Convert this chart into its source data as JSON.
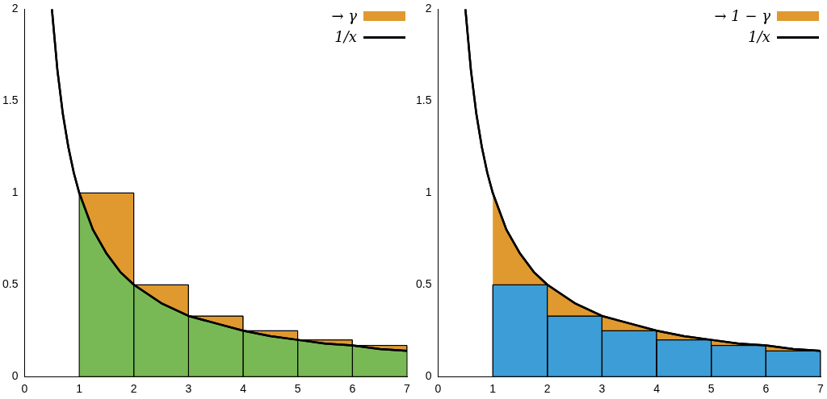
{
  "chart_data": [
    {
      "type": "line",
      "xlim": [
        0,
        7
      ],
      "ylim": [
        0,
        2
      ],
      "xticks": [
        0,
        1,
        2,
        3,
        4,
        5,
        6,
        7
      ],
      "yticks": [
        0,
        0.5,
        1,
        1.5,
        2
      ],
      "grid": false,
      "legend": "top right",
      "series": [
        {
          "type": "histogram",
          "name": "→ γ",
          "color": "#e0992f",
          "bins": [
            1,
            2,
            3,
            4,
            5,
            6,
            7
          ],
          "values": [
            1,
            0.5,
            0.33,
            0.25,
            0.2,
            0.17
          ]
        },
        {
          "type": "area",
          "color": "#79b955",
          "x": [
            1,
            1.25,
            1.5,
            1.75,
            2,
            2.5,
            3,
            3.5,
            4,
            4.5,
            5,
            5.5,
            6,
            6.5,
            7
          ],
          "values": [
            1,
            0.8,
            0.67,
            0.57,
            0.5,
            0.4,
            0.33,
            0.29,
            0.25,
            0.22,
            0.2,
            0.18,
            0.17,
            0.15,
            0.14
          ]
        },
        {
          "name": "1/x",
          "color": "#000000",
          "x": [
            0.5,
            0.6,
            0.7,
            0.8,
            0.9,
            1,
            1.25,
            1.5,
            1.75,
            2,
            2.5,
            3,
            3.5,
            4,
            4.5,
            5,
            5.5,
            6,
            6.5,
            7
          ],
          "values": [
            2,
            1.67,
            1.43,
            1.25,
            1.11,
            1,
            0.8,
            0.67,
            0.57,
            0.5,
            0.4,
            0.33,
            0.29,
            0.25,
            0.22,
            0.2,
            0.18,
            0.17,
            0.15,
            0.14
          ]
        }
      ]
    },
    {
      "type": "line",
      "xlim": [
        0,
        7
      ],
      "ylim": [
        0,
        2
      ],
      "xticks": [
        0,
        1,
        2,
        3,
        4,
        5,
        6,
        7
      ],
      "yticks": [
        0,
        0.5,
        1,
        1.5,
        2
      ],
      "grid": false,
      "legend": "top right",
      "series": [
        {
          "type": "area",
          "name": "→ 1 − γ",
          "color": "#e0992f",
          "x": [
            1,
            1.25,
            1.5,
            1.75,
            2,
            2.5,
            3,
            3.5,
            4,
            4.5,
            5,
            5.5,
            6,
            6.5,
            7
          ],
          "values": [
            1,
            0.8,
            0.67,
            0.57,
            0.5,
            0.4,
            0.33,
            0.29,
            0.25,
            0.22,
            0.2,
            0.18,
            0.17,
            0.15,
            0.14
          ]
        },
        {
          "type": "histogram",
          "color": "#3d9dd6",
          "bins": [
            1,
            2,
            3,
            4,
            5,
            6,
            7
          ],
          "values": [
            0.5,
            0.33,
            0.25,
            0.2,
            0.17,
            0.14
          ]
        },
        {
          "name": "1/x",
          "color": "#000000",
          "x": [
            0.5,
            0.6,
            0.7,
            0.8,
            0.9,
            1,
            1.25,
            1.5,
            1.75,
            2,
            2.5,
            3,
            3.5,
            4,
            4.5,
            5,
            5.5,
            6,
            6.5,
            7
          ],
          "values": [
            2,
            1.67,
            1.43,
            1.25,
            1.11,
            1,
            0.8,
            0.67,
            0.57,
            0.5,
            0.4,
            0.33,
            0.29,
            0.25,
            0.22,
            0.2,
            0.18,
            0.17,
            0.15,
            0.14
          ]
        }
      ]
    }
  ]
}
